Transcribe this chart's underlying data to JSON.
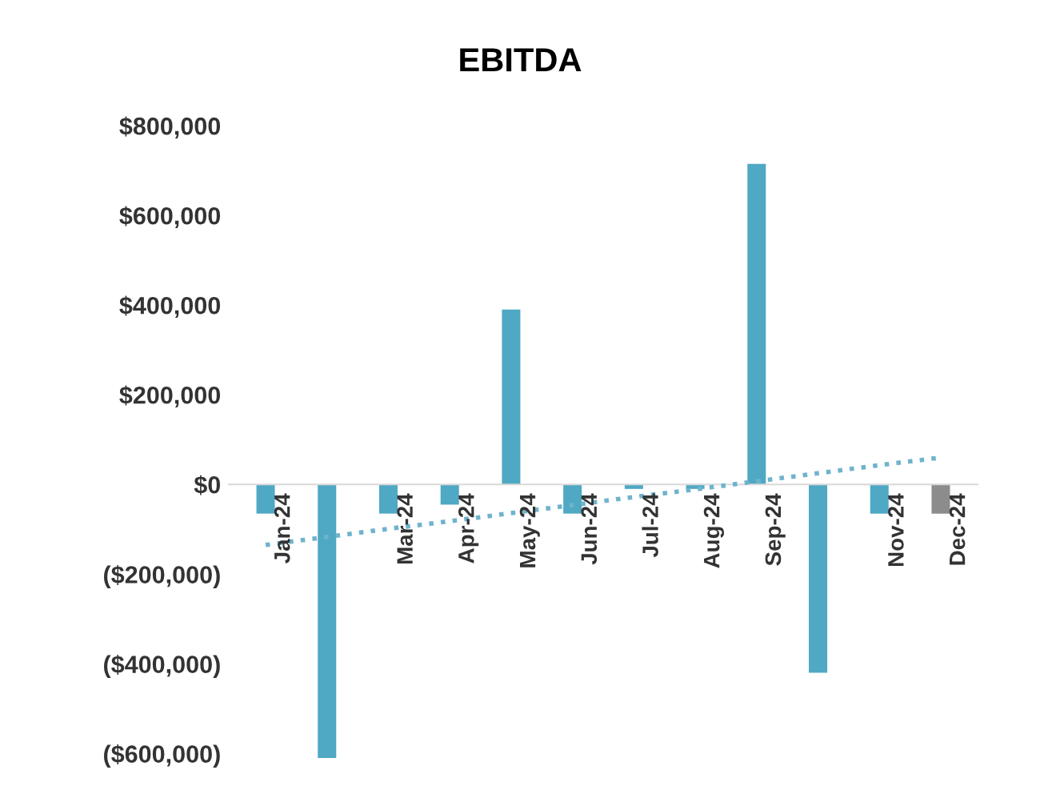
{
  "chart_data": {
    "type": "bar",
    "title": "EBITDA",
    "categories": [
      "Jan-24",
      null,
      "Mar-24",
      "Apr-24",
      "May-24",
      "Jun-24",
      "Jul-24",
      "Aug-24",
      "Sep-24",
      null,
      "Nov-24",
      "Dec-24"
    ],
    "series": [
      {
        "values": [
          -65000,
          -610000,
          -65000,
          -45000,
          390000,
          -65000,
          -10000,
          -10000,
          715000,
          -420000,
          -65000,
          -65000
        ],
        "colors": [
          "#4fa8c4",
          "#4fa8c4",
          "#4fa8c4",
          "#4fa8c4",
          "#4fa8c4",
          "#4fa8c4",
          "#4fa8c4",
          "#4fa8c4",
          "#4fa8c4",
          "#4fa8c4",
          "#4fa8c4",
          "#8c8c8c"
        ]
      },
      {
        "type": "line",
        "color": "#6fb3cc",
        "line_style": "dotted",
        "values": [
          -135000,
          -117000,
          -99000,
          -82000,
          -64000,
          -46000,
          -28000,
          -11000,
          7000,
          25000,
          43000,
          60000
        ]
      }
    ],
    "ylim": [
      -620000,
      800000
    ],
    "yticks": [
      {
        "value": 800000,
        "label": "$800,000"
      },
      {
        "value": 600000,
        "label": "$600,000"
      },
      {
        "value": 400000,
        "label": "$400,000"
      },
      {
        "value": 200000,
        "label": "$200,000"
      },
      {
        "value": 0,
        "label": "$0"
      },
      {
        "value": -200000,
        "label": "($200,000)"
      },
      {
        "value": -400000,
        "label": "($400,000)"
      },
      {
        "value": -600000,
        "label": "($600,000)"
      }
    ],
    "grid": false,
    "legend": false
  }
}
